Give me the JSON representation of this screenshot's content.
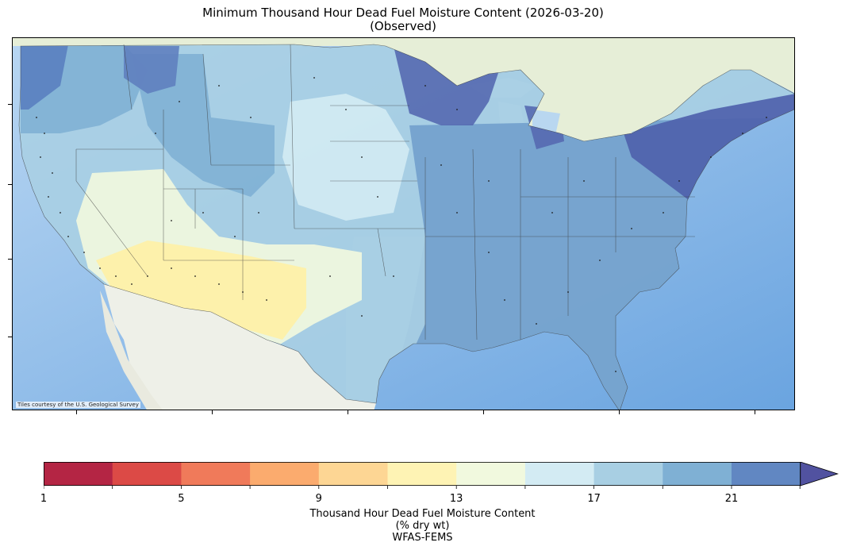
{
  "map": {
    "title_line1": "Minimum Thousand Hour Dead Fuel Moisture Content (2026-03-20)",
    "title_line2": "(Observed)",
    "attribution": "Tiles courtesy of the U.S. Geological Survey",
    "region": "Contiguous United States",
    "legend": {
      "tick_labels": [
        "1",
        "5",
        "9",
        "13",
        "17",
        "21"
      ],
      "title_line1": "Thousand Hour Dead Fuel Moisture Content",
      "title_line2": "(% dry wt)",
      "title_line3": "WFAS-FEMS",
      "bins": [
        {
          "color": "#b42544"
        },
        {
          "color": "#dc4a46"
        },
        {
          "color": "#f07a5a"
        },
        {
          "color": "#fbab6e"
        },
        {
          "color": "#fdd694"
        },
        {
          "color": "#fef3b4"
        },
        {
          "color": "#f1f9de"
        },
        {
          "color": "#d3ebf3"
        },
        {
          "color": "#a8cfe3"
        },
        {
          "color": "#7fb0d4"
        },
        {
          "color": "#6187c2"
        }
      ],
      "overflow_color": "#5152a0"
    },
    "colors": {
      "ocean": "#8ec0ea",
      "ocean_light": "#cfe4f7",
      "land_base": "#eaeee6",
      "canada": "#e7efd8",
      "border": "#333333"
    }
  }
}
